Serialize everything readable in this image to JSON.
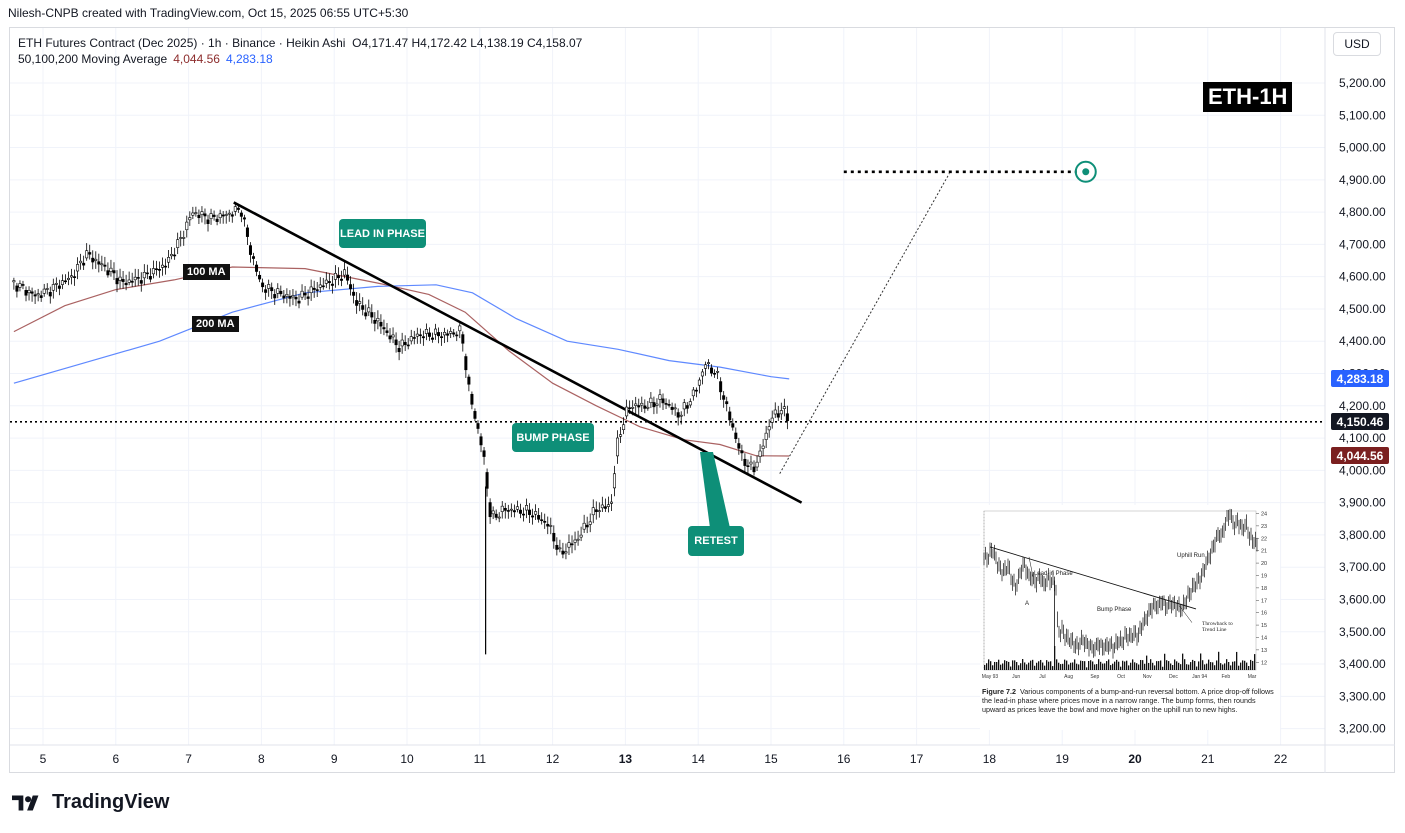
{
  "header": {
    "attribution": "Nilesh-CNPB created with TradingView.com, Oct 15, 2025 06:55 UTC+5:30"
  },
  "legend": {
    "symbol_line": "ETH Futures Contract (Dec 2025) · 1h · Binance · Heikin Ashi",
    "ohlc": "O4,171.47  H4,172.42  L4,138.19  C4,158.07",
    "ma_label": "50,100,200 Moving Average",
    "ma_value_1": "4,044.56",
    "ma_value_2": "4,283.18"
  },
  "currency_button": "USD",
  "ticker_badge": "ETH-1H",
  "annotations": {
    "ma100": "100 MA",
    "ma200": "200 MA",
    "lead_in": "LEAD IN PHASE",
    "bump": "BUMP PHASE",
    "retest": "RETEST"
  },
  "axis_tags": {
    "ma200": "4,283.18",
    "last_price": "4,150.46",
    "ma100": "4,044.56"
  },
  "colors": {
    "phase_green": "#0e8f78",
    "ma100_red": "#8d2d2d",
    "ma200_blue": "#2962ff",
    "candle": "#000000"
  },
  "chart_data": {
    "type": "candlestick",
    "price_scale": "USD",
    "ylim": [
      3160,
      5300
    ],
    "y_ticks": [
      "5,200.00",
      "5,100.00",
      "5,000.00",
      "4,900.00",
      "4,800.00",
      "4,700.00",
      "4,600.00",
      "4,500.00",
      "4,400.00",
      "4,300.00",
      "4,200.00",
      "4,100.00",
      "4,000.00",
      "3,900.00",
      "3,800.00",
      "3,700.00",
      "3,600.00",
      "3,500.00",
      "3,400.00",
      "3,300.00",
      "3,200.00"
    ],
    "x_ticks": [
      "5",
      "6",
      "7",
      "8",
      "9",
      "10",
      "11",
      "12",
      "13",
      "14",
      "15",
      "16",
      "17",
      "18",
      "19",
      "20",
      "21",
      "22"
    ],
    "price_path": [
      [
        4.6,
        4580
      ],
      [
        4.9,
        4540
      ],
      [
        5.1,
        4560
      ],
      [
        5.4,
        4600
      ],
      [
        5.6,
        4670
      ],
      [
        5.9,
        4620
      ],
      [
        6.1,
        4580
      ],
      [
        6.4,
        4600
      ],
      [
        6.7,
        4640
      ],
      [
        6.9,
        4720
      ],
      [
        7.05,
        4800
      ],
      [
        7.3,
        4780
      ],
      [
        7.5,
        4790
      ],
      [
        7.72,
        4810
      ],
      [
        7.85,
        4680
      ],
      [
        8.0,
        4570
      ],
      [
        8.2,
        4550
      ],
      [
        8.5,
        4530
      ],
      [
        8.8,
        4570
      ],
      [
        9.0,
        4590
      ],
      [
        9.15,
        4610
      ],
      [
        9.3,
        4520
      ],
      [
        9.6,
        4460
      ],
      [
        9.9,
        4380
      ],
      [
        10.15,
        4420
      ],
      [
        10.5,
        4420
      ],
      [
        10.75,
        4430
      ],
      [
        10.85,
        4250
      ],
      [
        10.95,
        4150
      ],
      [
        11.05,
        4050
      ],
      [
        11.15,
        3850
      ],
      [
        11.35,
        3880
      ],
      [
        11.7,
        3870
      ],
      [
        11.95,
        3830
      ],
      [
        12.1,
        3740
      ],
      [
        12.35,
        3790
      ],
      [
        12.6,
        3880
      ],
      [
        12.8,
        3890
      ],
      [
        12.9,
        4100
      ],
      [
        13.05,
        4200
      ],
      [
        13.3,
        4200
      ],
      [
        13.5,
        4220
      ],
      [
        13.75,
        4170
      ],
      [
        13.95,
        4240
      ],
      [
        14.1,
        4330
      ],
      [
        14.25,
        4300
      ],
      [
        14.45,
        4150
      ],
      [
        14.6,
        4040
      ],
      [
        14.75,
        4000
      ],
      [
        14.85,
        4050
      ],
      [
        15.0,
        4160
      ],
      [
        15.15,
        4190
      ],
      [
        15.25,
        4158
      ]
    ],
    "series": [
      {
        "name": "100 MA",
        "color": "#8d2d2d",
        "points": [
          [
            4.6,
            4430
          ],
          [
            5.3,
            4510
          ],
          [
            6.0,
            4560
          ],
          [
            6.8,
            4590
          ],
          [
            7.6,
            4630
          ],
          [
            8.6,
            4625
          ],
          [
            9.6,
            4580
          ],
          [
            10.3,
            4545
          ],
          [
            10.8,
            4490
          ],
          [
            11.4,
            4370
          ],
          [
            12.0,
            4270
          ],
          [
            12.6,
            4200
          ],
          [
            13.2,
            4135
          ],
          [
            13.8,
            4095
          ],
          [
            14.3,
            4080
          ],
          [
            14.8,
            4045
          ],
          [
            15.25,
            4044.56
          ]
        ]
      },
      {
        "name": "200 MA",
        "color": "#2962ff",
        "points": [
          [
            4.6,
            4270
          ],
          [
            5.6,
            4335
          ],
          [
            6.6,
            4400
          ],
          [
            7.6,
            4490
          ],
          [
            8.6,
            4550
          ],
          [
            9.6,
            4570
          ],
          [
            10.4,
            4575
          ],
          [
            10.9,
            4550
          ],
          [
            11.5,
            4470
          ],
          [
            12.2,
            4400
          ],
          [
            12.9,
            4375
          ],
          [
            13.6,
            4340
          ],
          [
            14.3,
            4320
          ],
          [
            15.0,
            4290
          ],
          [
            15.25,
            4283.18
          ]
        ]
      }
    ],
    "last_price": 4150.46,
    "trendline": {
      "from": [
        7.62,
        4830
      ],
      "to": [
        15.42,
        3900
      ]
    },
    "projection": {
      "from": [
        15.12,
        3990
      ],
      "to": [
        17.45,
        4920
      ]
    },
    "target_line": {
      "from": [
        16.0,
        4925
      ],
      "to": [
        19.2,
        4925
      ]
    },
    "annotations": [
      {
        "text": "LEAD IN PHASE",
        "x": 9.6,
        "y": 4730
      },
      {
        "text": "BUMP PHASE",
        "x": 12.0,
        "y": 4125
      },
      {
        "text": "RETEST",
        "x": 14.2,
        "y": 3815
      }
    ]
  },
  "inset": {
    "labels": {
      "lead_in": "Lead-in Phase",
      "bump": "Bump Phase",
      "uphill": "Uphill Run",
      "throwback": "Throwback to Trend Line",
      "point_a": "A"
    },
    "y_ticks": [
      "24",
      "23",
      "22",
      "21",
      "20",
      "19",
      "18",
      "17",
      "16",
      "15",
      "14",
      "13",
      "12"
    ],
    "x_ticks": [
      "May 93",
      "Jun",
      "Jul",
      "Aug",
      "Sep",
      "Oct",
      "Nov",
      "Dec",
      "Jan 94",
      "Feb",
      "Mar"
    ],
    "caption_title": "Figure 7.2",
    "caption_text": "Various components of a bump-and-run reversal bottom. A price drop-off follows the lead-in phase where prices move in a narrow range. The bump forms, then rounds upward as prices leave the bowl and move higher on the uphill run to new highs.",
    "price_path": [
      [
        0,
        20.5
      ],
      [
        4,
        20.4
      ],
      [
        8,
        21.2
      ],
      [
        12,
        20.3
      ],
      [
        16,
        19.5
      ],
      [
        20,
        19.3
      ],
      [
        24,
        19.8
      ],
      [
        28,
        18.6
      ],
      [
        32,
        18.0
      ],
      [
        36,
        19.2
      ],
      [
        40,
        20.0
      ],
      [
        44,
        19.0
      ],
      [
        48,
        18.8
      ],
      [
        52,
        18.4
      ],
      [
        56,
        19.0
      ],
      [
        60,
        18.2
      ],
      [
        64,
        18.8
      ],
      [
        68,
        18.5
      ],
      [
        70,
        18.6
      ],
      [
        72,
        18.0
      ],
      [
        74,
        14.3
      ],
      [
        78,
        14.6
      ],
      [
        82,
        14.0
      ],
      [
        86,
        13.8
      ],
      [
        90,
        13.5
      ],
      [
        94,
        13.2
      ],
      [
        98,
        13.9
      ],
      [
        102,
        13.5
      ],
      [
        106,
        13.3
      ],
      [
        110,
        13.0
      ],
      [
        114,
        13.5
      ],
      [
        118,
        13.2
      ],
      [
        122,
        13.3
      ],
      [
        126,
        13.4
      ],
      [
        130,
        13.1
      ],
      [
        134,
        13.8
      ],
      [
        138,
        13.6
      ],
      [
        142,
        14.2
      ],
      [
        146,
        14.0
      ],
      [
        150,
        14.3
      ],
      [
        154,
        14.1
      ],
      [
        158,
        15.0
      ],
      [
        162,
        15.5
      ],
      [
        166,
        16.2
      ],
      [
        170,
        16.6
      ],
      [
        174,
        16.5
      ],
      [
        178,
        17.0
      ],
      [
        182,
        16.4
      ],
      [
        186,
        16.8
      ],
      [
        190,
        16.6
      ],
      [
        194,
        16.5
      ],
      [
        198,
        16.3
      ],
      [
        202,
        17.0
      ],
      [
        206,
        17.6
      ],
      [
        210,
        18.2
      ],
      [
        214,
        18.5
      ],
      [
        218,
        19.0
      ],
      [
        222,
        20.0
      ],
      [
        226,
        20.6
      ],
      [
        230,
        21.5
      ],
      [
        234,
        22.3
      ],
      [
        238,
        22.2
      ],
      [
        242,
        23.4
      ],
      [
        246,
        24.0
      ],
      [
        250,
        23.0
      ],
      [
        254,
        23.4
      ],
      [
        258,
        22.7
      ],
      [
        262,
        23.2
      ],
      [
        266,
        22.0
      ],
      [
        270,
        21.8
      ],
      [
        274,
        21.4
      ]
    ]
  }
}
